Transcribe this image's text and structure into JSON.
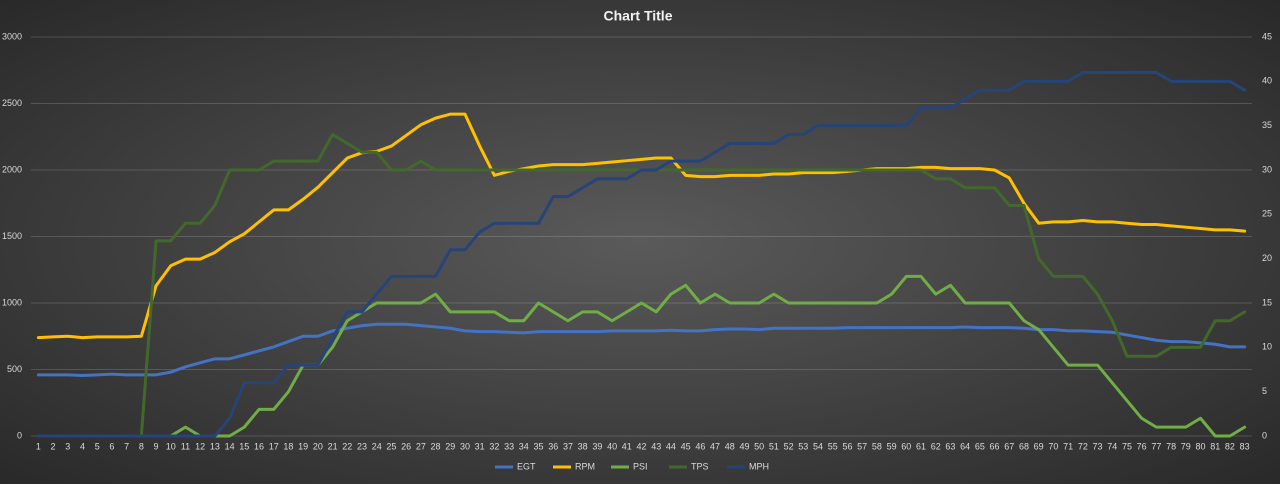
{
  "chart_data": {
    "type": "line",
    "title": "Chart Title",
    "categories": [
      1,
      2,
      3,
      4,
      5,
      6,
      7,
      8,
      9,
      10,
      11,
      12,
      13,
      14,
      15,
      16,
      17,
      18,
      19,
      20,
      21,
      22,
      23,
      24,
      25,
      26,
      27,
      28,
      29,
      30,
      31,
      32,
      33,
      34,
      35,
      36,
      37,
      38,
      39,
      40,
      41,
      42,
      43,
      44,
      45,
      46,
      47,
      48,
      49,
      50,
      51,
      52,
      53,
      54,
      55,
      56,
      57,
      58,
      59,
      60,
      61,
      62,
      63,
      64,
      65,
      66,
      67,
      68,
      69,
      70,
      71,
      72,
      73,
      74,
      75,
      76,
      77,
      78,
      79,
      80,
      81,
      82,
      83
    ],
    "ylim": [
      0,
      3000
    ],
    "yticks": [
      0,
      500,
      1000,
      1500,
      2000,
      2500,
      3000
    ],
    "y2lim": [
      0,
      45
    ],
    "y2ticks": [
      0,
      5,
      10,
      15,
      20,
      25,
      30,
      35,
      40,
      45
    ],
    "grid": true,
    "legend": "bottom",
    "series": [
      {
        "name": "EGT",
        "color": "#4472c4",
        "values": [
          460,
          460,
          460,
          455,
          460,
          465,
          460,
          460,
          460,
          480,
          520,
          550,
          580,
          580,
          610,
          640,
          670,
          710,
          750,
          750,
          790,
          810,
          830,
          840,
          840,
          840,
          830,
          820,
          810,
          790,
          785,
          785,
          780,
          775,
          785,
          785,
          785,
          785,
          785,
          790,
          790,
          790,
          790,
          795,
          790,
          790,
          800,
          805,
          805,
          800,
          810,
          810,
          810,
          810,
          810,
          815,
          815,
          815,
          815,
          815,
          815,
          815,
          815,
          820,
          815,
          815,
          815,
          810,
          800,
          800,
          790,
          790,
          785,
          780,
          760,
          740,
          720,
          710,
          710,
          700,
          690,
          670,
          670
        ]
      },
      {
        "name": "RPM",
        "color": "#ffc000",
        "values": [
          740,
          745,
          750,
          740,
          745,
          745,
          745,
          750,
          1130,
          1280,
          1330,
          1330,
          1380,
          1460,
          1520,
          1610,
          1700,
          1700,
          1780,
          1870,
          1980,
          2090,
          2130,
          2140,
          2180,
          2260,
          2340,
          2390,
          2420,
          2420,
          2180,
          1960,
          1990,
          2010,
          2030,
          2040,
          2040,
          2040,
          2050,
          2060,
          2070,
          2080,
          2090,
          2090,
          1960,
          1950,
          1950,
          1960,
          1960,
          1960,
          1970,
          1970,
          1980,
          1980,
          1980,
          1990,
          2000,
          2010,
          2010,
          2010,
          2020,
          2020,
          2010,
          2010,
          2010,
          2000,
          1940,
          1750,
          1600,
          1610,
          1610,
          1620,
          1610,
          1610,
          1600,
          1590,
          1590,
          1580,
          1570,
          1560,
          1550,
          1550,
          1540
        ]
      },
      {
        "name": "PSI",
        "color": "#70ad47",
        "axis": "y2",
        "values": [
          0,
          0,
          0,
          0,
          0,
          0,
          0,
          0,
          0,
          0,
          1,
          0,
          0,
          0,
          1,
          3,
          3,
          5,
          8,
          8,
          10,
          13,
          14,
          15,
          15,
          15,
          15,
          16,
          14,
          14,
          14,
          14,
          13,
          13,
          15,
          14,
          13,
          14,
          14,
          13,
          14,
          15,
          14,
          16,
          17,
          15,
          16,
          15,
          15,
          15,
          16,
          15,
          15,
          15,
          15,
          15,
          15,
          15,
          16,
          18,
          18,
          16,
          17,
          15,
          15,
          15,
          15,
          13,
          12,
          10,
          8,
          8,
          8,
          6,
          4,
          2,
          1,
          1,
          1,
          2,
          0,
          0,
          1
        ]
      },
      {
        "name": "TPS",
        "color": "#43682b",
        "axis": "y2",
        "values": [
          0,
          0,
          0,
          0,
          0,
          0,
          0,
          0,
          22,
          22,
          24,
          24,
          26,
          30,
          30,
          30,
          31,
          31,
          31,
          31,
          34,
          33,
          32,
          32,
          30,
          30,
          31,
          30,
          30,
          30,
          30,
          30,
          30,
          30,
          30,
          30,
          30,
          30,
          30,
          30,
          30,
          30,
          30,
          30,
          30,
          30,
          30,
          30,
          30,
          30,
          30,
          30,
          30,
          30,
          30,
          30,
          30,
          30,
          30,
          30,
          30,
          29,
          29,
          28,
          28,
          28,
          26,
          26,
          20,
          18,
          18,
          18,
          16,
          13,
          9,
          9,
          9,
          10,
          10,
          10,
          13,
          13,
          14
        ]
      },
      {
        "name": "MPH",
        "color": "#264478",
        "axis": "y2",
        "values": [
          0,
          0,
          0,
          0,
          0,
          0,
          0,
          0,
          0,
          0,
          0,
          0,
          0,
          2,
          6,
          6,
          6,
          8,
          8,
          8,
          11,
          14,
          14,
          16,
          18,
          18,
          18,
          18,
          21,
          21,
          23,
          24,
          24,
          24,
          24,
          27,
          27,
          28,
          29,
          29,
          29,
          30,
          30,
          31,
          31,
          31,
          32,
          33,
          33,
          33,
          33,
          34,
          34,
          35,
          35,
          35,
          35,
          35,
          35,
          35,
          37,
          37,
          37,
          38,
          39,
          39,
          39,
          40,
          40,
          40,
          40,
          41,
          41,
          41,
          41,
          41,
          41,
          40,
          40,
          40,
          40,
          40,
          39
        ]
      }
    ]
  }
}
